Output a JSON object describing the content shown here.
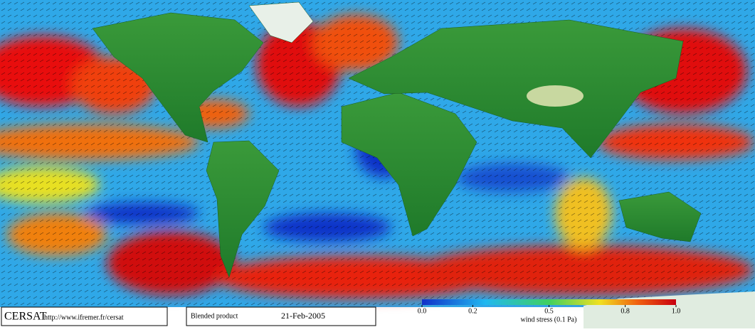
{
  "footer": {
    "logo": "CERSAT",
    "url": "http://www.ifremer.fr/cersat",
    "product": "Blended product",
    "date": "21-Feb-2005"
  },
  "colorbar": {
    "label": "wind stress (0.1 Pa)",
    "lim": [
      0,
      1
    ],
    "ticks": [
      {
        "value": 0,
        "label": "0.0"
      },
      0.2,
      0.5,
      0.8,
      {
        "value": 1,
        "label": "1.0"
      }
    ]
  }
}
